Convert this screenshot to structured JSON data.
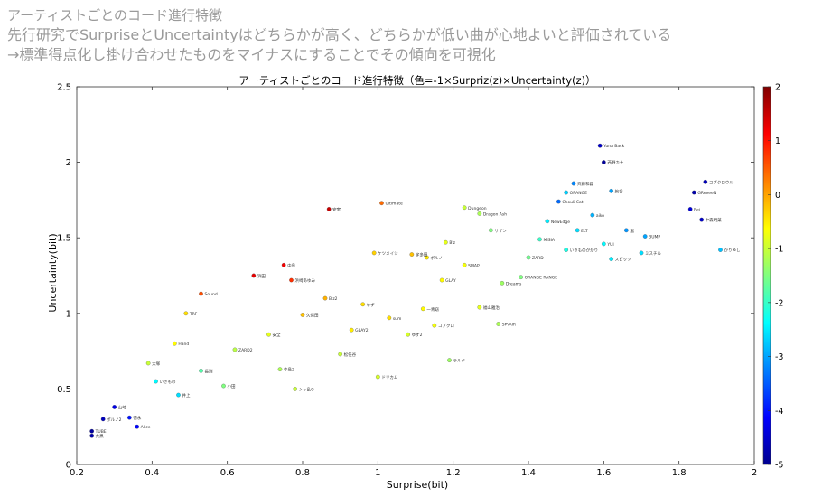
{
  "header": {
    "line1": "アーティストごとのコード進行特徴",
    "line2": "先行研究でSurpriseとUncertaintyはどちらかが高く、どちらかが低い曲が心地よいと評価されている",
    "line3": "→標準得点化し掛け合わせたものをマイナスにすることでその傾向を可視化"
  },
  "chart_data": {
    "type": "scatter",
    "title": "アーティストごとのコード進行特徴（色=-1×Surpriz(z)×Uncertainty(z)）",
    "xlabel": "Surprise(bit)",
    "ylabel": "Uncertainty(bit)",
    "xlim": [
      0.2,
      2.0
    ],
    "ylim": [
      0.0,
      2.5
    ],
    "xticks": [
      "0.2",
      "0.4",
      "0.6",
      "0.8",
      "1",
      "1.2",
      "1.4",
      "1.6",
      "1.8",
      "2"
    ],
    "yticks": [
      "0",
      "0.5",
      "1",
      "1.5",
      "2",
      "2.5"
    ],
    "colorbar": {
      "min": -5,
      "max": 2,
      "ticks": [
        "2",
        "1",
        "0",
        "-1",
        "-2",
        "-3",
        "-4",
        "-5"
      ],
      "colormap": "jet"
    },
    "grid": false,
    "series": [
      {
        "points": [
          {
            "x": 1.59,
            "y": 2.11,
            "c": -4.5,
            "label": "Yuna Back"
          },
          {
            "x": 1.6,
            "y": 2.0,
            "c": -4.8,
            "label": "西野カナ"
          },
          {
            "x": 1.87,
            "y": 1.87,
            "c": -4.6,
            "label": "コブクロウル"
          },
          {
            "x": 1.84,
            "y": 1.8,
            "c": -4.7,
            "label": "GReeeeN"
          },
          {
            "x": 1.83,
            "y": 1.69,
            "c": -4.4,
            "label": "Rei"
          },
          {
            "x": 1.86,
            "y": 1.62,
            "c": -4.5,
            "label": "中森明菜"
          },
          {
            "x": 1.91,
            "y": 1.42,
            "c": -2.8,
            "label": "かりゆし"
          },
          {
            "x": 1.62,
            "y": 1.81,
            "c": -3.0,
            "label": "絢香"
          },
          {
            "x": 1.52,
            "y": 1.86,
            "c": -3.2,
            "label": "斉藤和義"
          },
          {
            "x": 1.5,
            "y": 1.8,
            "c": -2.7,
            "label": "ORANGE"
          },
          {
            "x": 1.48,
            "y": 1.74,
            "c": -3.4,
            "label": "Chouli Cat"
          },
          {
            "x": 1.57,
            "y": 1.65,
            "c": -2.9,
            "label": "aiko"
          },
          {
            "x": 1.66,
            "y": 1.55,
            "c": -3.1,
            "label": "嵐"
          },
          {
            "x": 1.71,
            "y": 1.51,
            "c": -3.0,
            "label": "BUMP"
          },
          {
            "x": 1.45,
            "y": 1.61,
            "c": -2.5,
            "label": "NewEdge"
          },
          {
            "x": 1.53,
            "y": 1.55,
            "c": -2.6,
            "label": "ELT"
          },
          {
            "x": 1.6,
            "y": 1.46,
            "c": -2.4,
            "label": "YUI"
          },
          {
            "x": 1.43,
            "y": 1.49,
            "c": -2.0,
            "label": "MISIA"
          },
          {
            "x": 1.4,
            "y": 1.37,
            "c": -1.6,
            "label": "ZARD"
          },
          {
            "x": 1.5,
            "y": 1.42,
            "c": -2.2,
            "label": "いきものがかり"
          },
          {
            "x": 1.62,
            "y": 1.36,
            "c": -2.5,
            "label": "スピッツ"
          },
          {
            "x": 1.7,
            "y": 1.4,
            "c": -2.6,
            "label": "ミスチル"
          },
          {
            "x": 1.38,
            "y": 1.24,
            "c": -1.5,
            "label": "ORANGE RANGE"
          },
          {
            "x": 1.33,
            "y": 1.2,
            "c": -1.3,
            "label": "Dreams"
          },
          {
            "x": 1.3,
            "y": 1.55,
            "c": -1.5,
            "label": "サザン"
          },
          {
            "x": 1.27,
            "y": 1.66,
            "c": -1.2,
            "label": "Dragon Ash"
          },
          {
            "x": 1.23,
            "y": 1.7,
            "c": -1.0,
            "label": "Dungeon"
          },
          {
            "x": 1.27,
            "y": 1.04,
            "c": -0.8,
            "label": "福山雅治"
          },
          {
            "x": 1.32,
            "y": 0.93,
            "c": -1.2,
            "label": "SPYAIR"
          },
          {
            "x": 1.23,
            "y": 1.32,
            "c": -0.7,
            "label": "SMAP"
          },
          {
            "x": 1.17,
            "y": 1.22,
            "c": -0.6,
            "label": "GLAY"
          },
          {
            "x": 1.13,
            "y": 1.37,
            "c": -0.5,
            "label": "ポルノ"
          },
          {
            "x": 1.18,
            "y": 1.47,
            "c": -0.8,
            "label": "B'z"
          },
          {
            "x": 1.01,
            "y": 1.73,
            "c": 0.4,
            "label": "Ultimate"
          },
          {
            "x": 0.87,
            "y": 1.69,
            "c": 1.5,
            "label": "安室"
          },
          {
            "x": 0.99,
            "y": 1.4,
            "c": -0.3,
            "label": "ケツメイシ"
          },
          {
            "x": 1.09,
            "y": 1.39,
            "c": -0.2,
            "label": "宇多田"
          },
          {
            "x": 0.75,
            "y": 1.32,
            "c": 1.2,
            "label": "中島"
          },
          {
            "x": 0.77,
            "y": 1.22,
            "c": 0.8,
            "label": "浜崎あゆみ"
          },
          {
            "x": 0.67,
            "y": 1.25,
            "c": 1.3,
            "label": "浜田"
          },
          {
            "x": 0.53,
            "y": 1.13,
            "c": 0.6,
            "label": "Sound"
          },
          {
            "x": 0.49,
            "y": 1.0,
            "c": -0.4,
            "label": "TRF"
          },
          {
            "x": 0.46,
            "y": 0.8,
            "c": -0.6,
            "label": "Hand"
          },
          {
            "x": 0.39,
            "y": 0.67,
            "c": -1.0,
            "label": "大塚"
          },
          {
            "x": 0.41,
            "y": 0.55,
            "c": -2.4,
            "label": "いきもの"
          },
          {
            "x": 0.3,
            "y": 0.38,
            "c": -4.3,
            "label": "山崎"
          },
          {
            "x": 0.27,
            "y": 0.3,
            "c": -4.6,
            "label": "ポルノ2"
          },
          {
            "x": 0.24,
            "y": 0.22,
            "c": -4.8,
            "label": "TUBE"
          },
          {
            "x": 0.24,
            "y": 0.19,
            "c": -4.7,
            "label": "大黒"
          },
          {
            "x": 0.34,
            "y": 0.31,
            "c": -4.0,
            "label": "徳永"
          },
          {
            "x": 0.36,
            "y": 0.25,
            "c": -4.1,
            "label": "Alice"
          },
          {
            "x": 0.8,
            "y": 0.99,
            "c": -0.2,
            "label": "久保田"
          },
          {
            "x": 0.86,
            "y": 1.1,
            "c": -0.1,
            "label": "B'z2"
          },
          {
            "x": 0.96,
            "y": 1.06,
            "c": -0.4,
            "label": "ゆず"
          },
          {
            "x": 0.93,
            "y": 0.89,
            "c": -0.5,
            "label": "GLAY2"
          },
          {
            "x": 1.03,
            "y": 0.97,
            "c": -0.4,
            "label": "sum"
          },
          {
            "x": 1.12,
            "y": 1.03,
            "c": -0.6,
            "label": "一青窈"
          },
          {
            "x": 1.15,
            "y": 0.92,
            "c": -0.7,
            "label": "コブクロ"
          },
          {
            "x": 1.08,
            "y": 0.86,
            "c": -0.9,
            "label": "ゆず2"
          },
          {
            "x": 0.71,
            "y": 0.86,
            "c": -0.8,
            "label": "安全"
          },
          {
            "x": 0.62,
            "y": 0.76,
            "c": -1.1,
            "label": "ZARD2"
          },
          {
            "x": 0.74,
            "y": 0.63,
            "c": -1.2,
            "label": "中島2"
          },
          {
            "x": 0.9,
            "y": 0.73,
            "c": -1.0,
            "label": "松任谷"
          },
          {
            "x": 0.53,
            "y": 0.62,
            "c": -1.8,
            "label": "長渕"
          },
          {
            "x": 0.47,
            "y": 0.46,
            "c": -2.6,
            "label": "井上"
          },
          {
            "x": 0.59,
            "y": 0.52,
            "c": -1.5,
            "label": "小田"
          },
          {
            "x": 0.78,
            "y": 0.5,
            "c": -1.0,
            "label": "シャ乱Q"
          },
          {
            "x": 1.0,
            "y": 0.58,
            "c": -0.9,
            "label": "ドリカム"
          },
          {
            "x": 1.19,
            "y": 0.69,
            "c": -1.3,
            "label": "ラルク"
          }
        ]
      }
    ]
  }
}
